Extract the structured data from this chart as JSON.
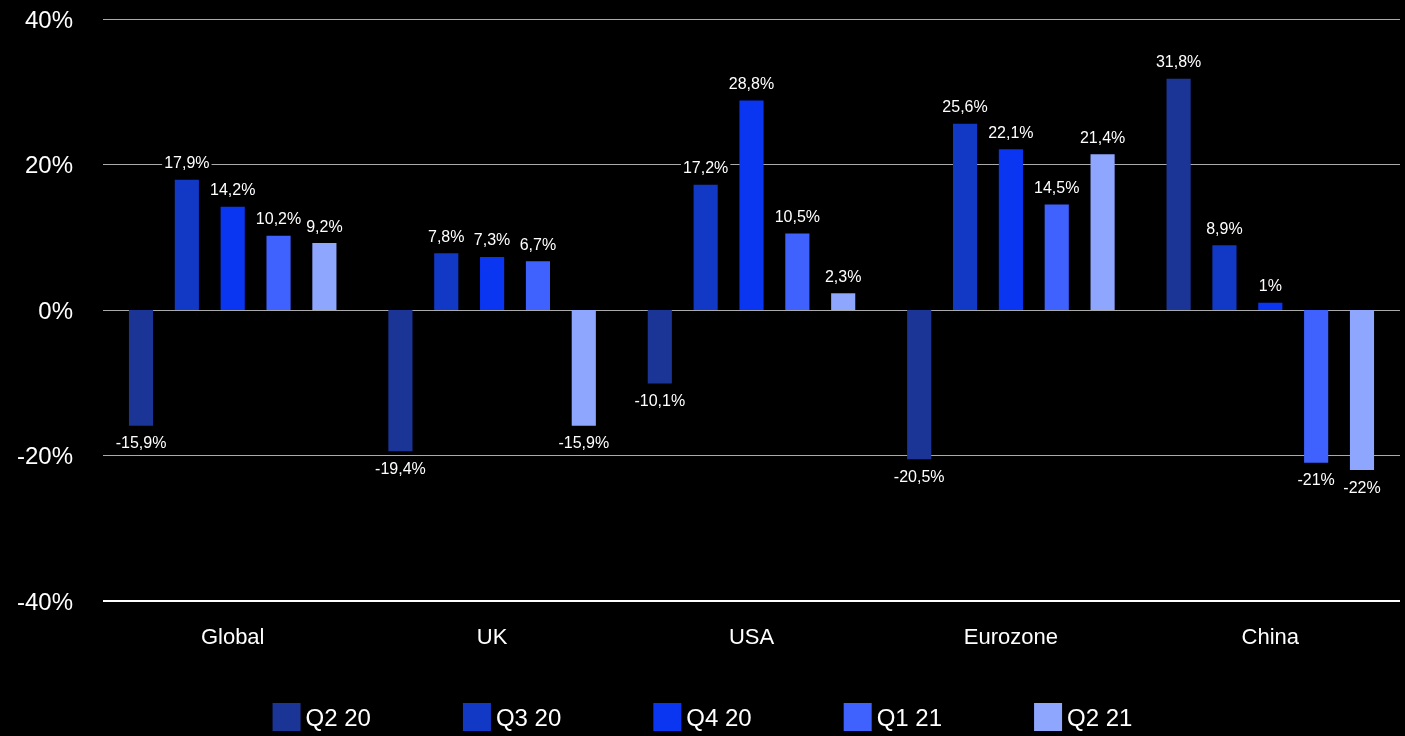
{
  "chart_data": {
    "type": "bar",
    "categories": [
      "Global",
      "UK",
      "USA",
      "Eurozone",
      "China"
    ],
    "series": [
      {
        "name": "Q2 20",
        "color": "#1a3596",
        "values": [
          -15.9,
          -19.4,
          -10.1,
          -20.5,
          31.8
        ],
        "value_labels": [
          "-15,9%",
          "-19,4%",
          "-10,1%",
          "-20,5%",
          "31,8%"
        ]
      },
      {
        "name": "Q3 20",
        "color": "#1238c6",
        "values": [
          17.9,
          7.8,
          17.2,
          25.6,
          8.9
        ],
        "value_labels": [
          "17,9%",
          "7,8%",
          "17,2%",
          "25,6%",
          "8,9%"
        ]
      },
      {
        "name": "Q4 20",
        "color": "#0a36f2",
        "values": [
          14.2,
          7.3,
          28.8,
          22.1,
          1
        ],
        "value_labels": [
          "14,2%",
          "7,3%",
          "28,8%",
          "22,1%",
          "1%"
        ]
      },
      {
        "name": "Q1 21",
        "color": "#3f62ff",
        "values": [
          10.2,
          6.7,
          10.5,
          14.5,
          -21
        ],
        "value_labels": [
          "10,2%",
          "6,7%",
          "10,5%",
          "14,5%",
          "-21%"
        ]
      },
      {
        "name": "Q2 21",
        "color": "#8fa6ff",
        "values": [
          9.2,
          -15.9,
          2.3,
          21.4,
          -22
        ],
        "value_labels": [
          "9,2%",
          "-15,9%",
          "2,3%",
          "21,4%",
          "-22%"
        ]
      }
    ],
    "ylim": [
      -40,
      40
    ],
    "yticks": [
      {
        "value": -40,
        "label": "-40%"
      },
      {
        "value": -20,
        "label": "-20%"
      },
      {
        "value": 0,
        "label": "0%"
      },
      {
        "value": 20,
        "label": "20%"
      },
      {
        "value": 40,
        "label": "40%"
      }
    ],
    "grid": "y",
    "legend": "bottom"
  }
}
